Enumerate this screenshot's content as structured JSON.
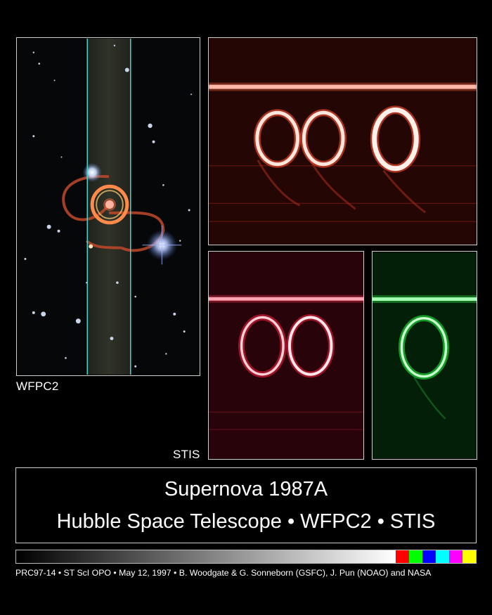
{
  "labels": {
    "wfpc2": "WFPC2",
    "stis": "STIS"
  },
  "title": {
    "line1": "Supernova 1987A",
    "line2": "Hubble Space Telescope • WFPC2 • STIS"
  },
  "credit": "PRC97-14 • ST ScI OPO • May 12, 1997 • B. Woodgate & G. Sonneborn (GSFC), J. Pun (NOAO) and NASA",
  "color_scale": {
    "gradient": [
      "#000000",
      "#ffffff"
    ],
    "swatches": [
      "#ff0000",
      "#00ff00",
      "#0000ff",
      "#00ffff",
      "#ff00ff",
      "#ffff00"
    ]
  }
}
